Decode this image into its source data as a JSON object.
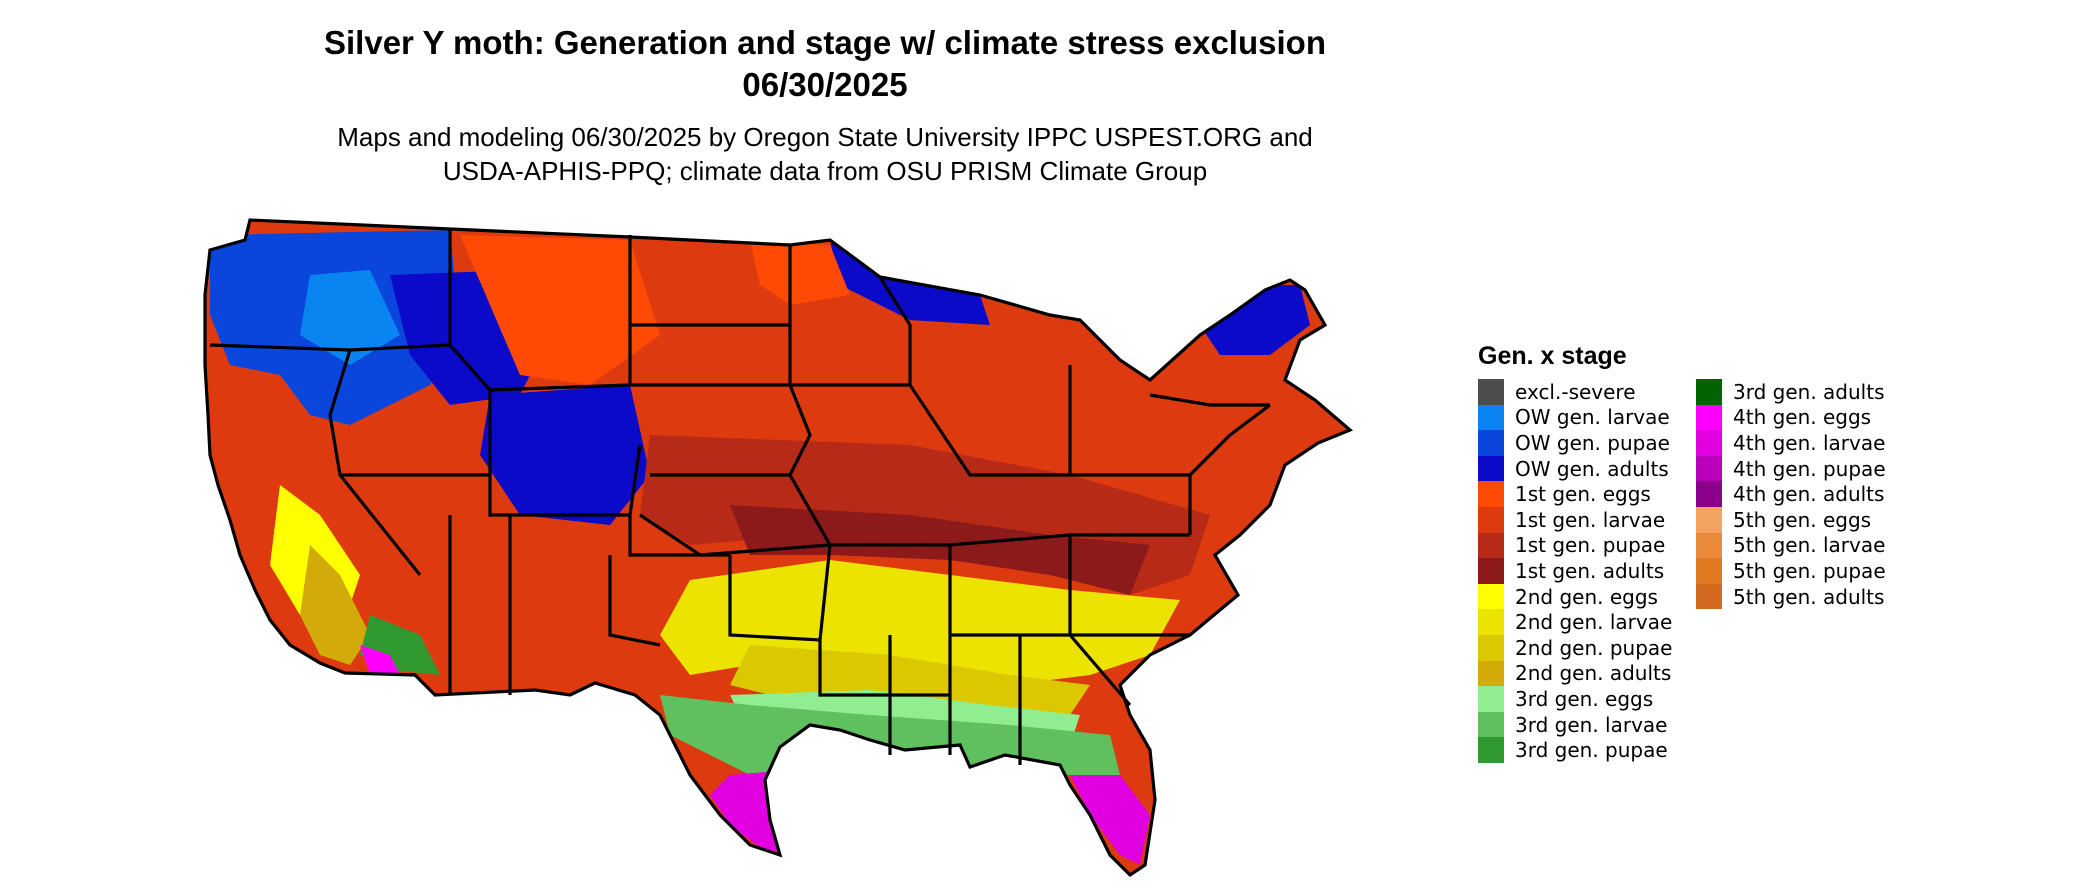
{
  "title_line1": "Silver Y moth: Generation and stage w/ climate stress exclusion",
  "title_line2": "06/30/2025",
  "subtitle_line1": "Maps and modeling 06/30/2025 by Oregon State University IPPC USPEST.ORG and",
  "subtitle_line2": "USDA-APHIS-PPQ; climate data from OSU PRISM Climate Group",
  "legend": {
    "title": "Gen. x stage",
    "items": [
      {
        "label": "excl.-severe",
        "color": "#4d4d4d"
      },
      {
        "label": "OW gen. larvae",
        "color": "#0a84f0"
      },
      {
        "label": "OW gen. pupae",
        "color": "#0a46dc"
      },
      {
        "label": "OW gen. adults",
        "color": "#0a0ac8"
      },
      {
        "label": "1st gen. eggs",
        "color": "#ff4a05"
      },
      {
        "label": "1st gen. larvae",
        "color": "#dd3a0f"
      },
      {
        "label": "1st gen. pupae",
        "color": "#b82a18"
      },
      {
        "label": "1st gen. adults",
        "color": "#8c1a1a"
      },
      {
        "label": "2nd gen. eggs",
        "color": "#ffff00"
      },
      {
        "label": "2nd gen. larvae",
        "color": "#ece300"
      },
      {
        "label": "2nd gen. pupae",
        "color": "#dcc800"
      },
      {
        "label": "2nd gen. adults",
        "color": "#d2aa0a"
      },
      {
        "label": "3rd gen. eggs",
        "color": "#90ee90"
      },
      {
        "label": "3rd gen. larvae",
        "color": "#60c060"
      },
      {
        "label": "3rd gen. pupae",
        "color": "#309930"
      },
      {
        "label": "3rd gen. adults",
        "color": "#006400"
      },
      {
        "label": "4th gen. eggs",
        "color": "#ff00ff"
      },
      {
        "label": "4th gen. larvae",
        "color": "#e000e0"
      },
      {
        "label": "4th gen. pupae",
        "color": "#bb00bb"
      },
      {
        "label": "4th gen. adults",
        "color": "#8b008b"
      },
      {
        "label": "5th gen. eggs",
        "color": "#f4a460"
      },
      {
        "label": "5th gen. larvae",
        "color": "#ea8a38"
      },
      {
        "label": "5th gen. pupae",
        "color": "#e07820"
      },
      {
        "label": "5th gen. adults",
        "color": "#d2691e"
      }
    ]
  }
}
